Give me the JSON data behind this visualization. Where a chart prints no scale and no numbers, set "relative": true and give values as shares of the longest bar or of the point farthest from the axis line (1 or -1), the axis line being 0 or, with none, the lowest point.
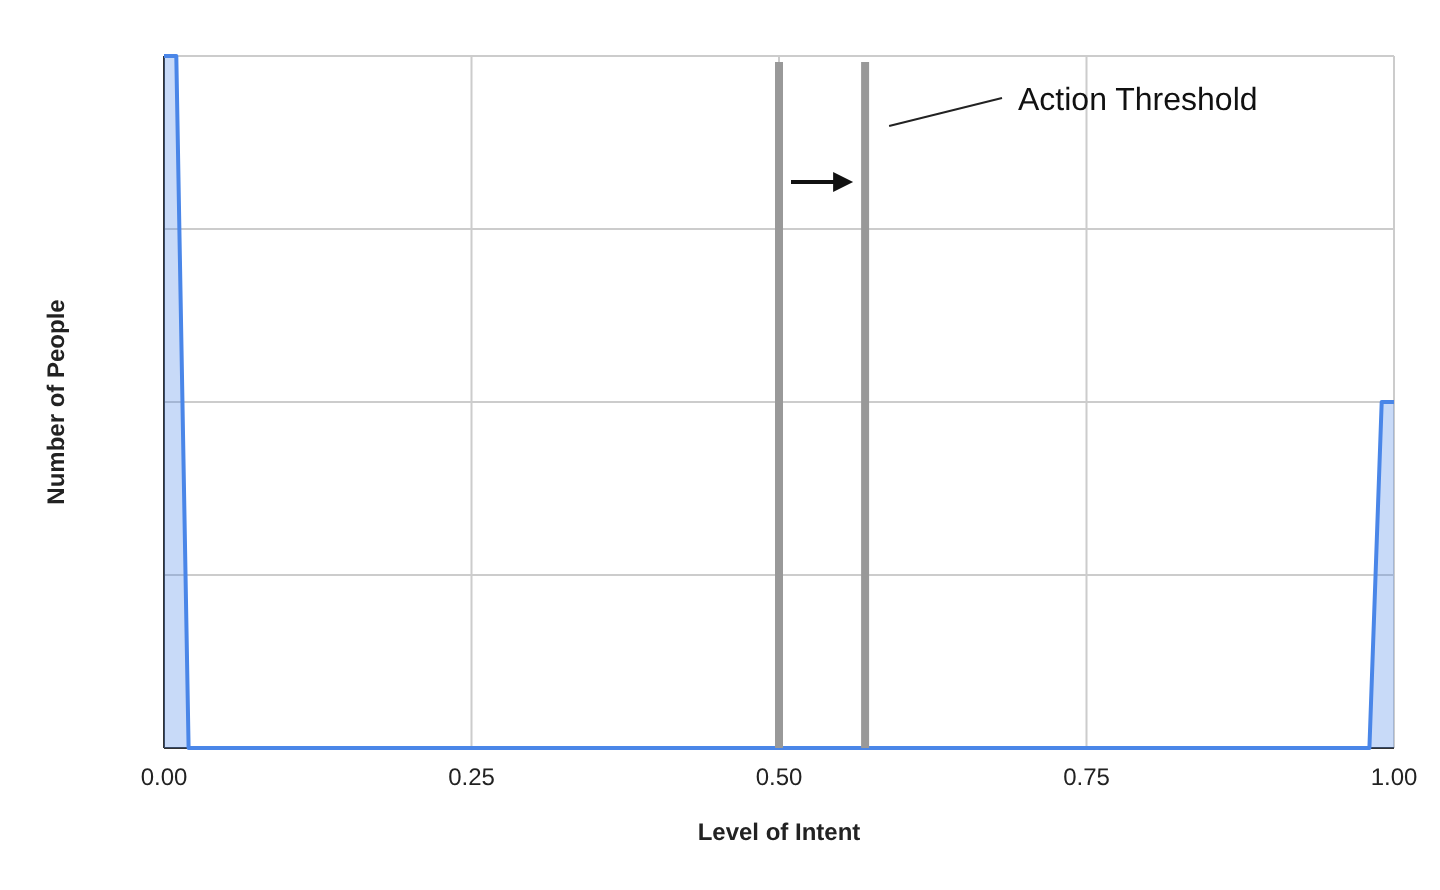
{
  "chart_data": {
    "type": "area",
    "xlabel": "Level of Intent",
    "ylabel": "Number of People",
    "relative": true,
    "grid": true,
    "annotations": [
      "Action Threshold"
    ],
    "xlim": [
      0,
      1
    ],
    "xticks": [
      {
        "value": 0,
        "label": "0.00"
      },
      {
        "value": 0.25,
        "label": "0.25"
      },
      {
        "value": 0.5,
        "label": "0.50"
      },
      {
        "value": 0.75,
        "label": "0.75"
      },
      {
        "value": 1,
        "label": "1.00"
      }
    ],
    "x": [
      0,
      0.01,
      0.02,
      0.98,
      0.99,
      1
    ],
    "series": [
      {
        "color": "#4a86e8",
        "values": [
          1,
          1,
          0,
          0,
          0.5,
          0.5
        ]
      }
    ],
    "ref_lines": [
      {
        "axis": "x",
        "value": 0.5,
        "color": "#999999"
      },
      {
        "axis": "x",
        "value": 0.57,
        "color": "#999999"
      }
    ]
  }
}
